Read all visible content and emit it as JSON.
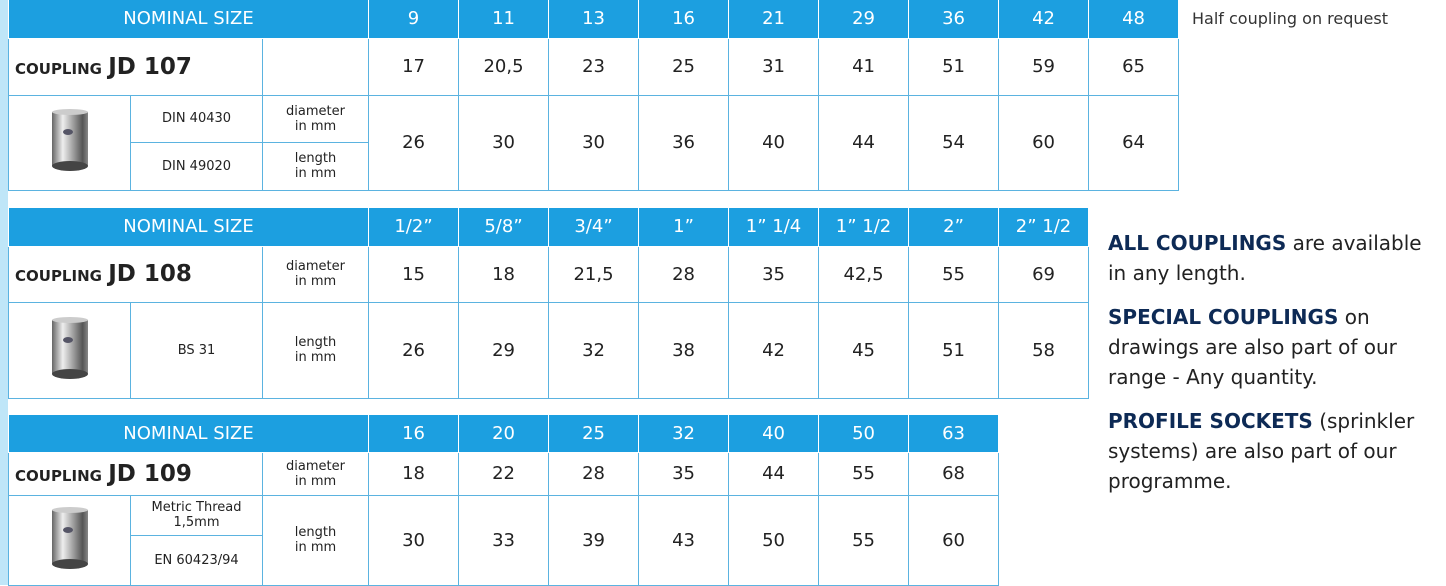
{
  "note": "Half coupling on request",
  "tables": [
    {
      "header": "NOMINAL SIZE",
      "sizes": [
        "9",
        "11",
        "13",
        "16",
        "21",
        "29",
        "36",
        "42",
        "48"
      ],
      "coupling": {
        "prefix": "COUPLING",
        "code": "JD 107"
      },
      "coupling_values": [
        "17",
        "20,5",
        "23",
        "25",
        "31",
        "41",
        "51",
        "59",
        "65"
      ],
      "standards": [
        "DIN 40430",
        "DIN 49020"
      ],
      "units": [
        "diameter\nin mm",
        "length\nin mm"
      ],
      "dimension_values": [
        "26",
        "30",
        "30",
        "36",
        "40",
        "44",
        "54",
        "60",
        "64"
      ]
    },
    {
      "header": "NOMINAL SIZE",
      "sizes": [
        "1/2”",
        "5/8”",
        "3/4”",
        "1”",
        "1” 1/4",
        "1” 1/2",
        "2”",
        "2” 1/2"
      ],
      "coupling": {
        "prefix": "COUPLING",
        "code": "JD 108"
      },
      "coupling_unit": "diameter\nin mm",
      "coupling_values": [
        "15",
        "18",
        "21,5",
        "28",
        "35",
        "42,5",
        "55",
        "69"
      ],
      "standards": [
        "BS 31"
      ],
      "units": [
        "length\nin mm"
      ],
      "dimension_values": [
        "26",
        "29",
        "32",
        "38",
        "42",
        "45",
        "51",
        "58"
      ]
    },
    {
      "header": "NOMINAL SIZE",
      "sizes": [
        "16",
        "20",
        "25",
        "32",
        "40",
        "50",
        "63"
      ],
      "coupling": {
        "prefix": "COUPLING",
        "code": "JD 109"
      },
      "coupling_unit": "diameter\nin mm",
      "coupling_values": [
        "18",
        "22",
        "28",
        "35",
        "44",
        "55",
        "68"
      ],
      "standards": [
        "Metric Thread\n1,5mm",
        "EN 60423/94"
      ],
      "units": [
        "length\nin mm"
      ],
      "dimension_values": [
        "30",
        "33",
        "39",
        "43",
        "50",
        "55",
        "60"
      ]
    }
  ],
  "notes": [
    {
      "bold": "ALL COUPLINGS",
      "text": "are available in any length."
    },
    {
      "bold": "SPECIAL COUPLINGS",
      "text": "on drawings are also part of our range - Any quantity."
    },
    {
      "bold": "PROFILE SOCKETS",
      "text": "(sprinkler systems) are also part of our programme."
    }
  ]
}
